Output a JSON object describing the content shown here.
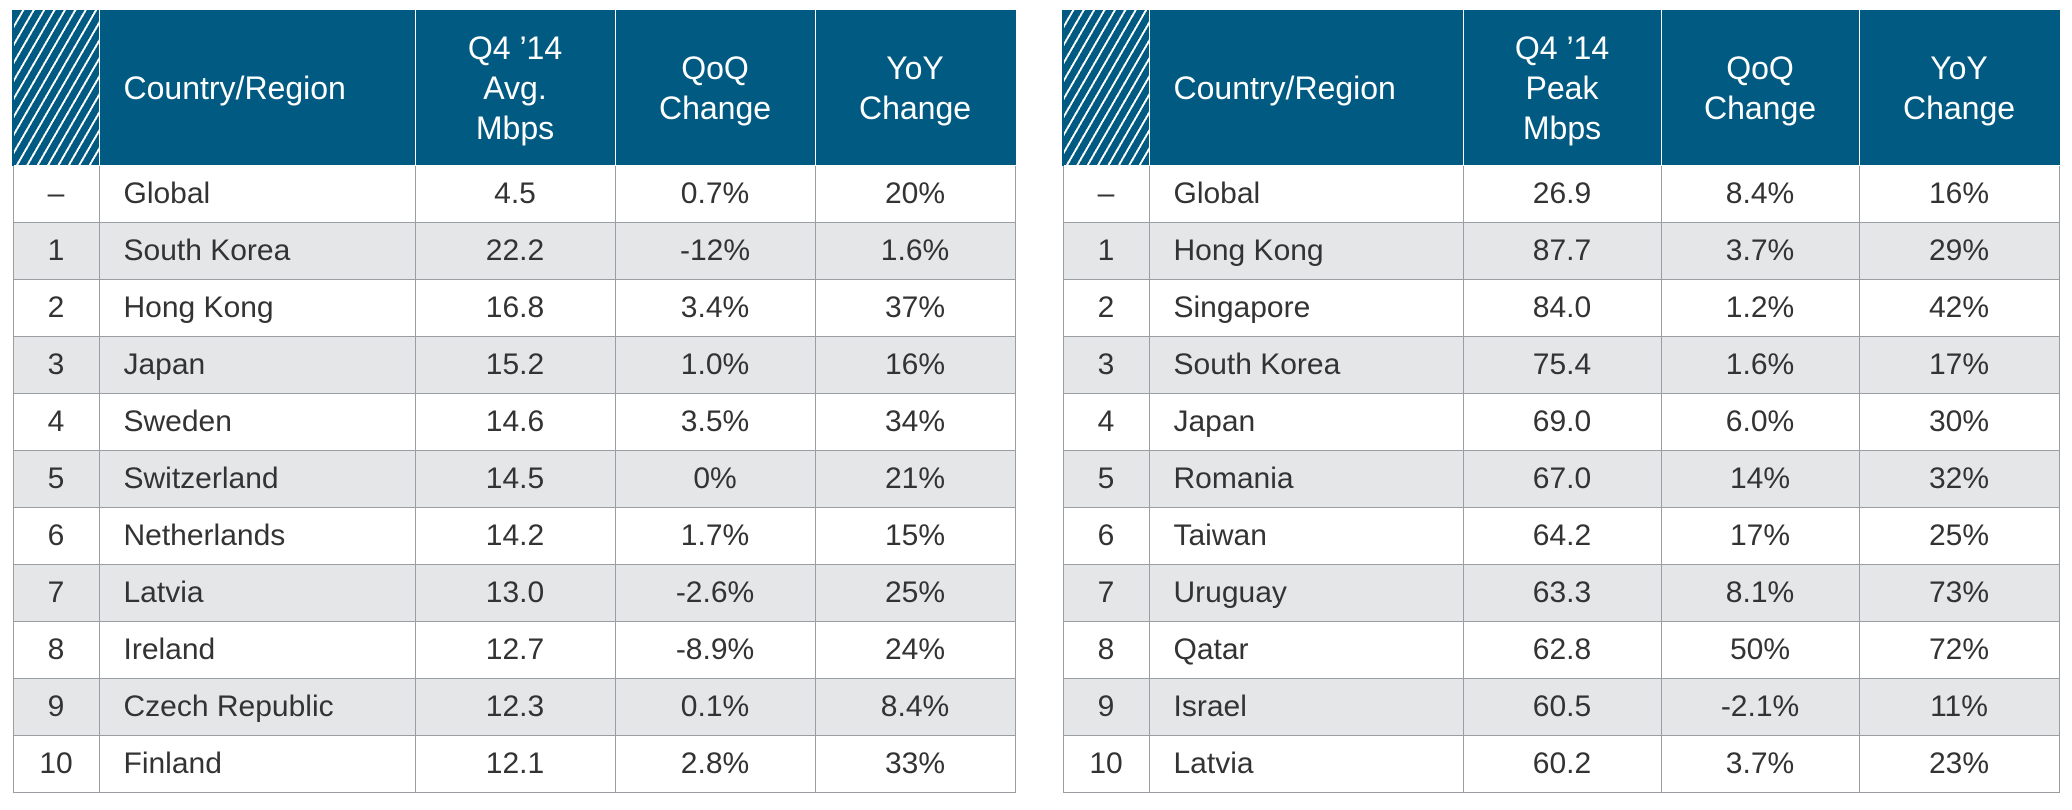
{
  "chart_data": [
    {
      "type": "table",
      "headers": [
        "",
        "Country/Region",
        "Q4 ’14 Avg. Mbps",
        "QoQ Change",
        "YoY Change"
      ],
      "header_lines": {
        "region": "Country/Region",
        "metric": [
          "Q4 ’14",
          "Avg.",
          "Mbps"
        ],
        "qoq": [
          "QoQ",
          "Change"
        ],
        "yoy": [
          "YoY",
          "Change"
        ]
      },
      "rows": [
        {
          "rank": "–",
          "region": "Global",
          "value": "4.5",
          "qoq": "0.7%",
          "yoy": "20%"
        },
        {
          "rank": "1",
          "region": "South Korea",
          "value": "22.2",
          "qoq": "-12%",
          "yoy": "1.6%"
        },
        {
          "rank": "2",
          "region": "Hong Kong",
          "value": "16.8",
          "qoq": "3.4%",
          "yoy": "37%"
        },
        {
          "rank": "3",
          "region": "Japan",
          "value": "15.2",
          "qoq": "1.0%",
          "yoy": "16%"
        },
        {
          "rank": "4",
          "region": "Sweden",
          "value": "14.6",
          "qoq": "3.5%",
          "yoy": "34%"
        },
        {
          "rank": "5",
          "region": "Switzerland",
          "value": "14.5",
          "qoq": "0%",
          "yoy": "21%"
        },
        {
          "rank": "6",
          "region": "Netherlands",
          "value": "14.2",
          "qoq": "1.7%",
          "yoy": "15%"
        },
        {
          "rank": "7",
          "region": "Latvia",
          "value": "13.0",
          "qoq": "-2.6%",
          "yoy": "25%"
        },
        {
          "rank": "8",
          "region": "Ireland",
          "value": "12.7",
          "qoq": "-8.9%",
          "yoy": "24%"
        },
        {
          "rank": "9",
          "region": "Czech Republic",
          "value": "12.3",
          "qoq": "0.1%",
          "yoy": "8.4%"
        },
        {
          "rank": "10",
          "region": "Finland",
          "value": "12.1",
          "qoq": "2.8%",
          "yoy": "33%"
        }
      ]
    },
    {
      "type": "table",
      "headers": [
        "",
        "Country/Region",
        "Q4 ’14 Peak Mbps",
        "QoQ Change",
        "YoY Change"
      ],
      "header_lines": {
        "region": "Country/Region",
        "metric": [
          "Q4 ’14",
          "Peak",
          "Mbps"
        ],
        "qoq": [
          "QoQ",
          "Change"
        ],
        "yoy": [
          "YoY",
          "Change"
        ]
      },
      "rows": [
        {
          "rank": "–",
          "region": "Global",
          "value": "26.9",
          "qoq": "8.4%",
          "yoy": "16%"
        },
        {
          "rank": "1",
          "region": "Hong Kong",
          "value": "87.7",
          "qoq": "3.7%",
          "yoy": "29%"
        },
        {
          "rank": "2",
          "region": "Singapore",
          "value": "84.0",
          "qoq": "1.2%",
          "yoy": "42%"
        },
        {
          "rank": "3",
          "region": "South Korea",
          "value": "75.4",
          "qoq": "1.6%",
          "yoy": "17%"
        },
        {
          "rank": "4",
          "region": "Japan",
          "value": "69.0",
          "qoq": "6.0%",
          "yoy": "30%"
        },
        {
          "rank": "5",
          "region": "Romania",
          "value": "67.0",
          "qoq": "14%",
          "yoy": "32%"
        },
        {
          "rank": "6",
          "region": "Taiwan",
          "value": "64.2",
          "qoq": "17%",
          "yoy": "25%"
        },
        {
          "rank": "7",
          "region": "Uruguay",
          "value": "63.3",
          "qoq": "8.1%",
          "yoy": "73%"
        },
        {
          "rank": "8",
          "region": "Qatar",
          "value": "62.8",
          "qoq": "50%",
          "yoy": "72%"
        },
        {
          "rank": "9",
          "region": "Israel",
          "value": "60.5",
          "qoq": "-2.1%",
          "yoy": "11%"
        },
        {
          "rank": "10",
          "region": "Latvia",
          "value": "60.2",
          "qoq": "3.7%",
          "yoy": "23%"
        }
      ]
    }
  ],
  "colors": {
    "header_bg": "#005a82",
    "header_text": "#ffffff",
    "row_shade": "#e5e6e8",
    "grid": "#9a9ea3",
    "text": "#333333"
  }
}
